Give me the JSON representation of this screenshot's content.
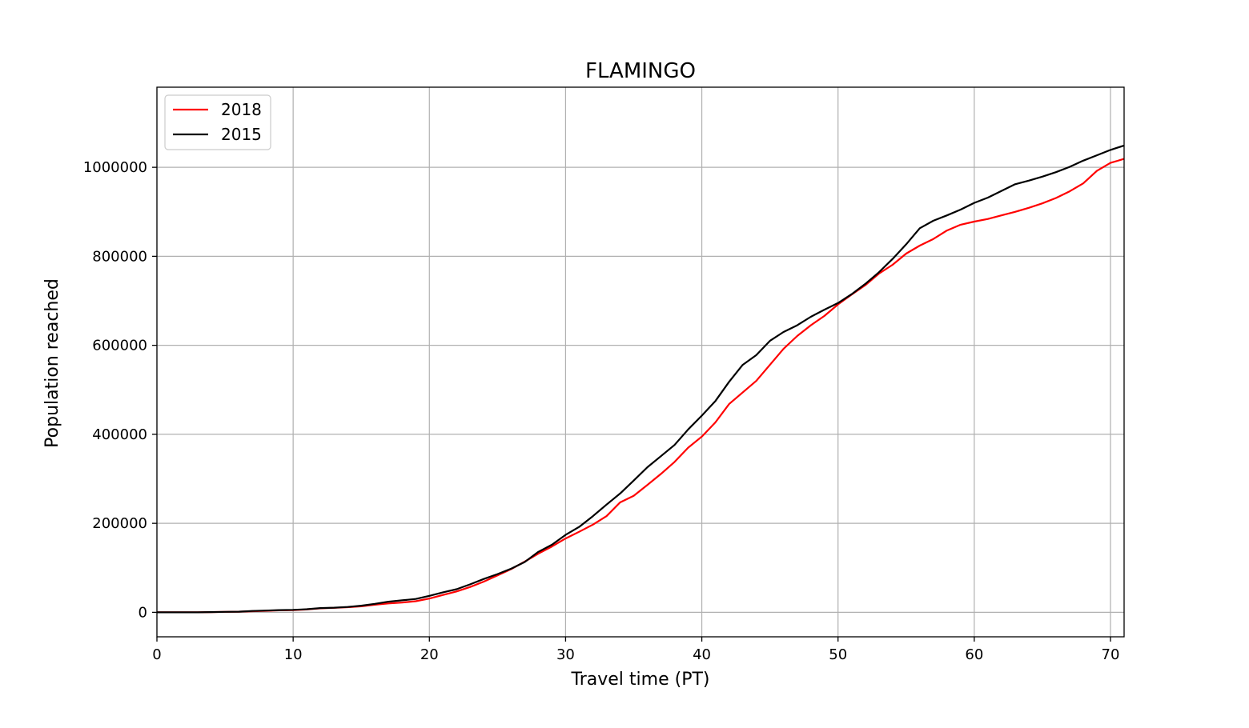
{
  "chart_data": {
    "type": "line",
    "title": "FLAMINGO",
    "xlabel": "Travel time (PT)",
    "ylabel": "Population reached",
    "xlim": [
      0,
      71
    ],
    "ylim": [
      -55000,
      1180000
    ],
    "xticks": [
      0,
      10,
      20,
      30,
      40,
      50,
      60,
      70
    ],
    "yticks": [
      0,
      200000,
      400000,
      600000,
      800000,
      1000000
    ],
    "grid": true,
    "legend_position": "top-left",
    "x": [
      0,
      1,
      2,
      3,
      4,
      5,
      6,
      7,
      8,
      9,
      10,
      11,
      12,
      13,
      14,
      15,
      16,
      17,
      18,
      19,
      20,
      21,
      22,
      23,
      24,
      25,
      26,
      27,
      28,
      29,
      30,
      31,
      32,
      33,
      34,
      35,
      36,
      37,
      38,
      39,
      40,
      41,
      42,
      43,
      44,
      45,
      46,
      47,
      48,
      49,
      50,
      51,
      52,
      53,
      54,
      55,
      56,
      57,
      58,
      59,
      60,
      61,
      62,
      63,
      64,
      65,
      66,
      67,
      68,
      69,
      70,
      71
    ],
    "series": [
      {
        "name": "2018",
        "color": "#ff0000",
        "values": [
          0,
          0,
          0,
          0,
          500,
          1000,
          1500,
          2500,
          3500,
          4500,
          5000,
          6500,
          9000,
          10000,
          11500,
          13500,
          17000,
          20000,
          22000,
          25000,
          31000,
          39000,
          47000,
          57000,
          69000,
          83000,
          97000,
          114000,
          132000,
          148000,
          166000,
          181000,
          197000,
          216000,
          247000,
          262000,
          286000,
          311000,
          338000,
          370000,
          395000,
          427000,
          468000,
          494000,
          520000,
          556000,
          592000,
          621000,
          645000,
          666000,
          692000,
          714000,
          735000,
          761000,
          781000,
          806000,
          824000,
          839000,
          858000,
          871000,
          878000,
          884000,
          892000,
          900000,
          909000,
          919000,
          931000,
          946000,
          964000,
          992000,
          1010000,
          1019000
        ]
      },
      {
        "name": "2015",
        "color": "#000000",
        "values": [
          0,
          0,
          0,
          0,
          500,
          1000,
          1500,
          3000,
          4000,
          5000,
          5500,
          7000,
          9500,
          10500,
          12000,
          15000,
          19000,
          24000,
          27000,
          30000,
          37000,
          45000,
          52000,
          63000,
          75000,
          86000,
          98000,
          113000,
          136000,
          152000,
          174000,
          192000,
          216000,
          242000,
          267000,
          296000,
          326000,
          351000,
          376000,
          411000,
          442000,
          475000,
          518000,
          556000,
          578000,
          610000,
          630000,
          645000,
          664000,
          680000,
          695000,
          715000,
          738000,
          764000,
          794000,
          827000,
          863000,
          880000,
          892000,
          905000,
          920000,
          932000,
          947000,
          962000,
          970000,
          979000,
          989000,
          1001000,
          1015000,
          1027000,
          1039000,
          1049000
        ]
      }
    ]
  }
}
